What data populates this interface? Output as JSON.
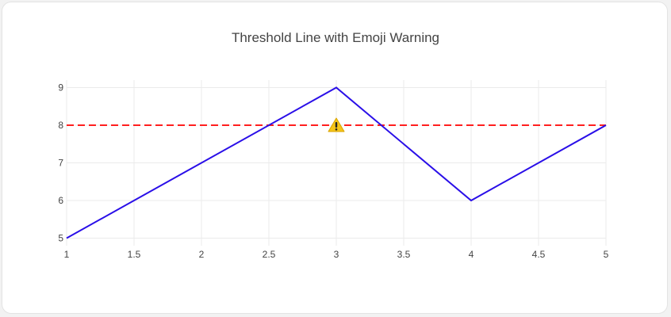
{
  "chart_data": {
    "type": "line",
    "title": "Threshold Line with Emoji Warning",
    "xlabel": "",
    "ylabel": "",
    "x": [
      1,
      2,
      3,
      4,
      5
    ],
    "series": [
      {
        "values": [
          5,
          7,
          9,
          6,
          8
        ],
        "color": "#2a0fe8"
      }
    ],
    "threshold": {
      "value": 8,
      "color": "#ff1f1f",
      "style": "dashed"
    },
    "annotation": {
      "x": 3,
      "y": 8,
      "icon": "warning-icon",
      "color": "#f5c518"
    },
    "xlim": [
      1,
      5
    ],
    "ylim": [
      4.8,
      9.2
    ],
    "x_ticks": [
      "1",
      "1.5",
      "2",
      "2.5",
      "3",
      "3.5",
      "4",
      "4.5",
      "5"
    ],
    "y_ticks": [
      "5",
      "6",
      "7",
      "8",
      "9"
    ],
    "grid": true
  }
}
